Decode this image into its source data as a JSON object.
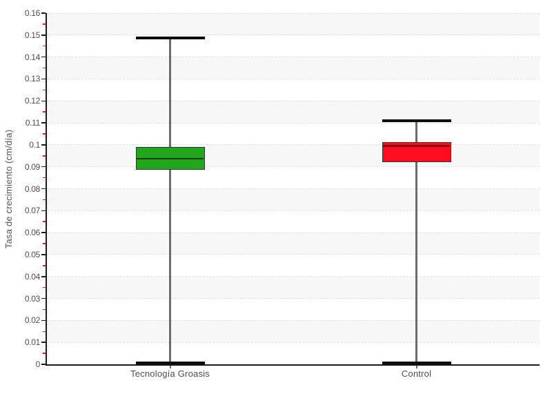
{
  "chart_data": {
    "type": "boxplot",
    "title": "",
    "xlabel": "",
    "ylabel": "Tasa de crecimiento (cm/día)",
    "ylim": [
      0,
      0.16
    ],
    "ytick_step": 0.01,
    "y_minor_tick_step": 0.005,
    "grid": "horizontal dashed gridlines with alternating light-gray bands",
    "legend_position": "none",
    "categories": [
      "Tecnología Groasis",
      "Control"
    ],
    "series": [
      {
        "name": "Tecnología Groasis",
        "whisker_min": 0.0005,
        "q1": 0.0885,
        "median": 0.0937,
        "q3": 0.099,
        "whisker_max": 0.1487,
        "box_color": "#23a51d",
        "median_color": "#15430f"
      },
      {
        "name": "Control",
        "whisker_min": 0.0005,
        "q1": 0.092,
        "median": 0.0995,
        "q3": 0.1013,
        "whisker_max": 0.111,
        "box_color": "#fc0d1f",
        "median_color": "#8b0615"
      }
    ],
    "style": {
      "band_color": "#f7f7f7",
      "gridline_color": "#e0e0e0",
      "axis_color": "#1a1a1a",
      "major_tick_color": "#1a1a1a",
      "minor_tick_color": "#ff1a1a",
      "tick_label_color": "#4d4d4d",
      "category_label_color": "#4d4d4d",
      "whisker_color": "#6b6b6b",
      "cap_color": "#0d0d0d",
      "box_border_color": "#333333"
    }
  }
}
